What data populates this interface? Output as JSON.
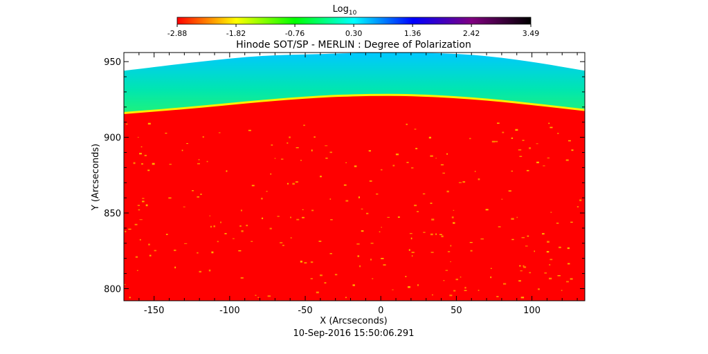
{
  "chart_data": {
    "type": "heatmap",
    "title": "Hinode SOT/SP - MERLIN : Degree of Polarization",
    "xlabel": "X (Arcseconds)",
    "ylabel": "Y (Arcseconds)",
    "footer": "10-Sep-2016 15:50:06.291",
    "xlim": [
      -170,
      135
    ],
    "ylim": [
      792,
      956
    ],
    "x_ticks": [
      -150,
      -100,
      -50,
      0,
      50,
      100
    ],
    "y_ticks": [
      800,
      850,
      900,
      950
    ],
    "x_tick_labels": [
      "-150",
      "-100",
      "-50",
      "0",
      "50",
      "100"
    ],
    "y_tick_labels": [
      "800",
      "850",
      "900",
      "950"
    ],
    "colorbar": {
      "label": "Log",
      "label_subscript": "10",
      "min": -2.88,
      "max": 3.49,
      "tick_values": [
        -2.88,
        -1.82,
        -0.76,
        0.3,
        1.36,
        2.42,
        3.49
      ],
      "tick_labels": [
        "-2.88",
        "-1.82",
        "-0.76",
        "0.30",
        "1.36",
        "2.42",
        "3.49"
      ],
      "colormap": [
        "#ff0000",
        "#ffff00",
        "#00ff00",
        "#00ffff",
        "#0000ff",
        "#800080",
        "#000000"
      ]
    },
    "limb": {
      "description_values": "approximate limb edge y (arcsec) at given x",
      "x": [
        -170,
        -120,
        -80,
        -40,
        -10,
        20,
        60,
        100,
        135
      ],
      "y": [
        916,
        920,
        924,
        927,
        928,
        928,
        926,
        922,
        918
      ]
    },
    "off_limb_band": {
      "x": [
        -170,
        -120,
        -80,
        -40,
        -10,
        20,
        60,
        100,
        135
      ],
      "y": [
        944,
        950,
        954,
        955,
        956,
        956,
        955,
        950,
        944
      ]
    }
  }
}
